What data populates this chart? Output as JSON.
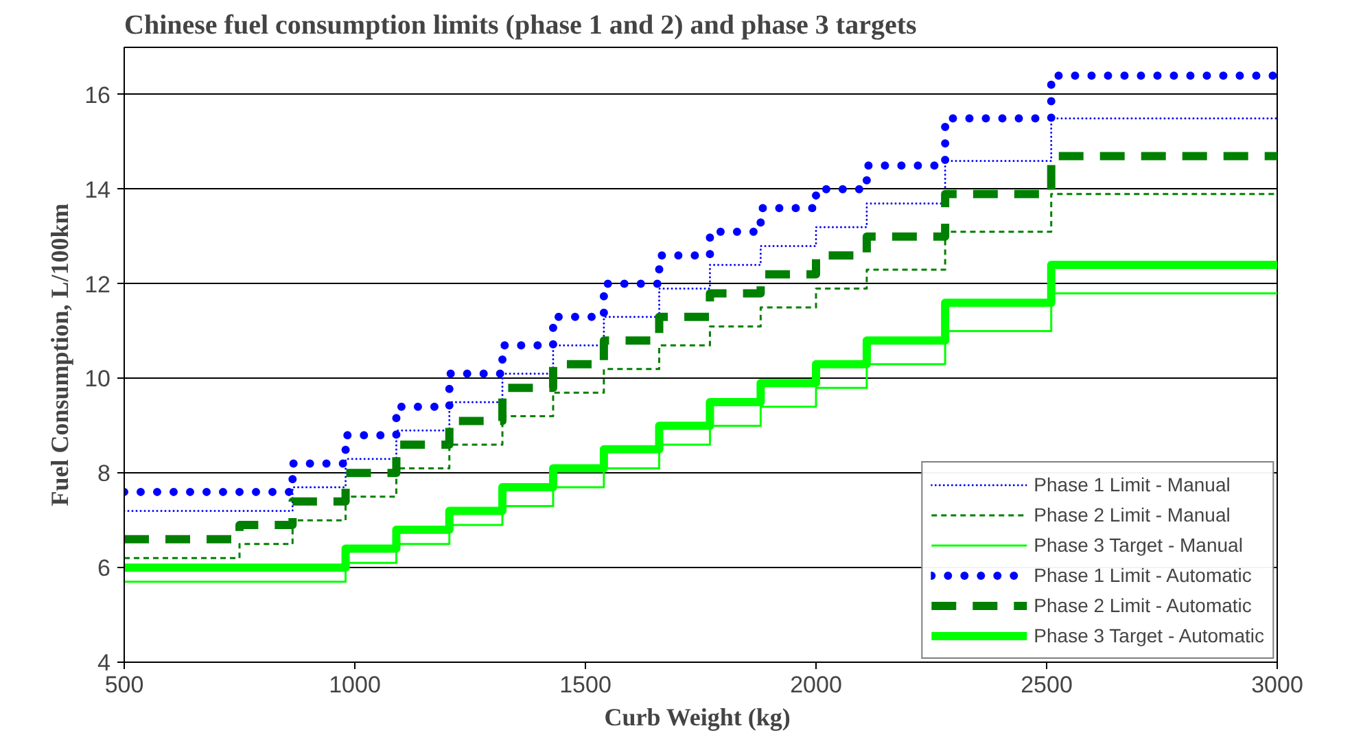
{
  "chart_data": {
    "type": "step",
    "title": "Chinese fuel consumption limits (phase 1 and 2) and phase 3 targets",
    "xlabel": "Curb Weight  (kg)",
    "ylabel": "Fuel Consumption, L/100km",
    "x": [
      500,
      750,
      865,
      980,
      1090,
      1205,
      1320,
      1430,
      1540,
      1660,
      1770,
      1880,
      2000,
      2110,
      2280,
      2510,
      3000
    ],
    "series": [
      {
        "name": "Phase 1 Limit - Manual",
        "color": "#0000ff",
        "line_style": "dotted",
        "values": [
          7.2,
          7.2,
          7.7,
          8.3,
          8.9,
          9.5,
          10.1,
          10.7,
          11.3,
          11.9,
          12.4,
          12.8,
          13.2,
          13.7,
          14.6,
          15.5,
          15.5
        ]
      },
      {
        "name": "Phase 2 Limit - Manual",
        "color": "#008000",
        "line_style": "dashed",
        "values": [
          6.2,
          6.5,
          7.0,
          7.5,
          8.1,
          8.6,
          9.2,
          9.7,
          10.2,
          10.7,
          11.1,
          11.5,
          11.9,
          12.3,
          13.1,
          13.9,
          13.9
        ]
      },
      {
        "name": "Phase 3 Target - Manual",
        "color": "#00ff00",
        "line_style": "solid",
        "values": [
          5.7,
          5.7,
          5.7,
          6.1,
          6.5,
          6.9,
          7.3,
          7.7,
          8.1,
          8.6,
          9.0,
          9.4,
          9.8,
          10.3,
          11.0,
          11.8,
          11.8
        ]
      },
      {
        "name": "Phase 1 Limit - Automatic",
        "color": "#0000ff",
        "line_style": "dotted",
        "values": [
          7.6,
          7.6,
          8.2,
          8.8,
          9.4,
          10.1,
          10.7,
          11.3,
          12.0,
          12.6,
          13.1,
          13.6,
          14.0,
          14.5,
          15.5,
          16.4,
          16.4
        ]
      },
      {
        "name": "Phase 2 Limit - Automatic",
        "color": "#008000",
        "line_style": "dashed",
        "values": [
          6.6,
          6.9,
          7.4,
          8.0,
          8.6,
          9.1,
          9.8,
          10.3,
          10.8,
          11.3,
          11.8,
          12.2,
          12.6,
          13.0,
          13.9,
          14.7,
          14.7
        ]
      },
      {
        "name": "Phase 3 Target - Automatic",
        "color": "#00ff00",
        "line_style": "solid",
        "values": [
          6.0,
          6.0,
          6.0,
          6.4,
          6.8,
          7.2,
          7.7,
          8.1,
          8.5,
          9.0,
          9.5,
          9.9,
          10.3,
          10.8,
          11.6,
          12.4,
          12.4
        ]
      }
    ],
    "xlim": [
      500,
      3000
    ],
    "ylim": [
      4,
      17
    ],
    "xticks": [
      500,
      1000,
      1500,
      2000,
      2500,
      3000
    ],
    "yticks": [
      4,
      6,
      8,
      10,
      12,
      14,
      16
    ],
    "grid": "y",
    "legend": "bottom right"
  }
}
